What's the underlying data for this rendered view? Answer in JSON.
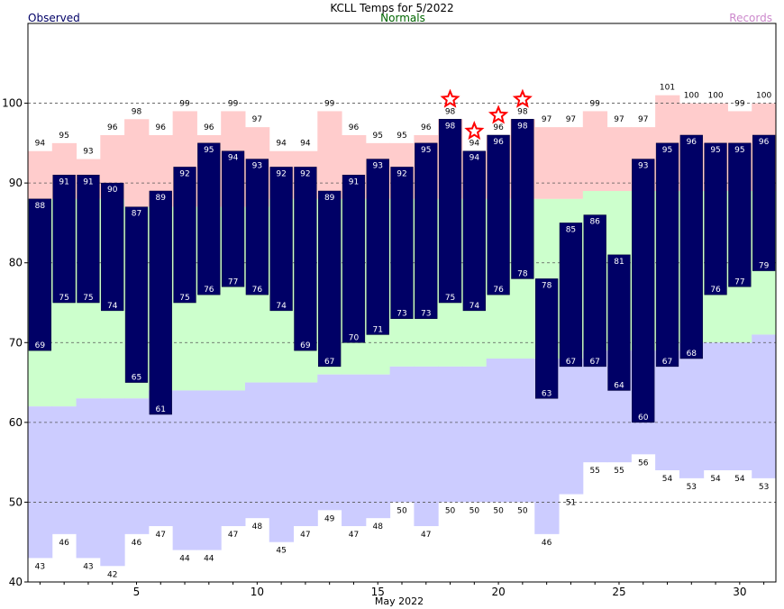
{
  "chart_data": {
    "type": "bar",
    "title": "KCLL Temps for 5/2022",
    "legend": {
      "observed": "Observed",
      "normals": "Normals",
      "records": "Records"
    },
    "xlabel": "May 2022",
    "ylim": [
      40,
      110
    ],
    "yticks": [
      40,
      50,
      60,
      70,
      80,
      90,
      100
    ],
    "xticks": [
      5,
      10,
      15,
      20,
      25,
      30
    ],
    "grid": "dashed horizontal at 50, 60, 70, 80, 90, 100",
    "colors": {
      "observed": "#000066",
      "record_band": "#ffcccc",
      "normal_band": "#ccffcc",
      "lower_band": "#ccccff",
      "record_star": "#ff0000",
      "observed_label": "#000066",
      "normals_label": "#006600",
      "records_label": "#cc88cc"
    },
    "days": [
      1,
      2,
      3,
      4,
      5,
      6,
      7,
      8,
      9,
      10,
      11,
      12,
      13,
      14,
      15,
      16,
      17,
      18,
      19,
      20,
      21,
      22,
      23,
      24,
      25,
      26,
      27,
      28,
      29,
      30,
      31
    ],
    "observed_high": [
      88,
      91,
      91,
      90,
      87,
      89,
      92,
      95,
      94,
      93,
      92,
      92,
      89,
      91,
      93,
      92,
      95,
      98,
      94,
      96,
      98,
      78,
      85,
      86,
      81,
      93,
      95,
      96,
      95,
      95,
      96
    ],
    "observed_low": [
      69,
      75,
      75,
      74,
      65,
      61,
      75,
      76,
      77,
      76,
      74,
      69,
      67,
      70,
      71,
      73,
      73,
      75,
      74,
      76,
      78,
      63,
      67,
      67,
      64,
      60,
      67,
      68,
      76,
      77,
      79
    ],
    "normal_high": [
      88,
      88,
      88,
      88,
      87,
      87,
      87,
      87,
      87,
      87,
      88,
      88,
      88,
      88,
      88,
      88,
      88,
      88,
      88,
      88,
      88,
      88,
      88,
      89,
      89,
      89,
      89,
      89,
      89,
      89,
      89
    ],
    "normal_low": [
      62,
      62,
      63,
      63,
      63,
      64,
      64,
      64,
      64,
      65,
      65,
      65,
      66,
      66,
      66,
      67,
      67,
      67,
      67,
      68,
      68,
      68,
      68,
      69,
      69,
      69,
      69,
      70,
      70,
      70,
      71
    ],
    "record_high": [
      94,
      95,
      93,
      96,
      98,
      96,
      99,
      96,
      99,
      97,
      94,
      94,
      99,
      96,
      95,
      95,
      96,
      98,
      94,
      96,
      98,
      97,
      97,
      99,
      97,
      97,
      101,
      100,
      100,
      99,
      100
    ],
    "record_low": [
      43,
      46,
      43,
      42,
      46,
      47,
      44,
      44,
      47,
      48,
      45,
      47,
      49,
      47,
      48,
      50,
      47,
      50,
      50,
      50,
      50,
      46,
      51,
      55,
      55,
      56,
      54,
      53,
      54,
      54,
      53
    ],
    "record_set_days": [
      18,
      19,
      20,
      21
    ]
  }
}
